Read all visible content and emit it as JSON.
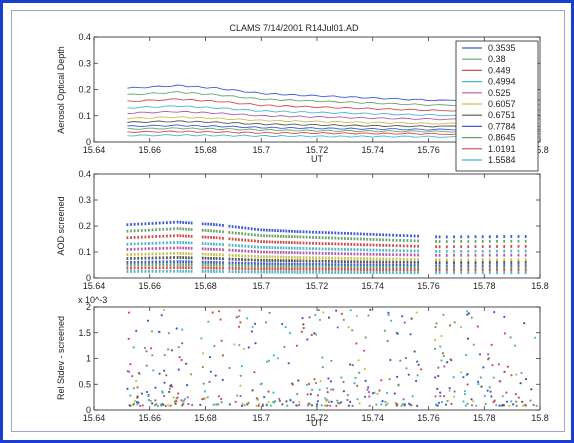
{
  "chart_data": [
    {
      "type": "line",
      "title": "CLAMS  7/14/2001 R14Jul01.AD",
      "xlabel": "UT",
      "ylabel": "Aerosol Optical Depth",
      "xlim": [
        15.64,
        15.8
      ],
      "ylim": [
        0,
        0.4
      ],
      "xticks": [
        "15.64",
        "15.66",
        "15.68",
        "15.7",
        "15.72",
        "15.74",
        "15.76",
        "15.78",
        "15.8"
      ],
      "yticks": [
        "0",
        "0.1",
        "0.2",
        "0.3",
        "0.4"
      ],
      "grid": false,
      "legend_position": "top-right",
      "legend": [
        "0.3535",
        "0.38",
        "0.449",
        "0.4994",
        "0.525",
        "0.6057",
        "0.6751",
        "0.7784",
        "0.8645",
        "1.0191",
        "1.5584"
      ],
      "series": [
        {
          "name": "0.3535",
          "color": "#3d5ad6",
          "values": [
            0.205,
            0.215,
            0.205,
            0.185,
            0.178,
            0.172,
            0.165,
            0.158,
            0.16
          ]
        },
        {
          "name": "0.38",
          "color": "#6aa36a",
          "values": [
            0.18,
            0.19,
            0.18,
            0.163,
            0.158,
            0.152,
            0.146,
            0.14,
            0.142
          ]
        },
        {
          "name": "0.449",
          "color": "#d24b4b",
          "values": [
            0.155,
            0.163,
            0.155,
            0.14,
            0.135,
            0.13,
            0.125,
            0.12,
            0.122
          ]
        },
        {
          "name": "0.4994",
          "color": "#49b8c8",
          "values": [
            0.13,
            0.137,
            0.13,
            0.118,
            0.114,
            0.11,
            0.106,
            0.102,
            0.104
          ]
        },
        {
          "name": "0.525",
          "color": "#b458b4",
          "values": [
            0.11,
            0.116,
            0.11,
            0.1,
            0.097,
            0.093,
            0.09,
            0.087,
            0.088
          ]
        },
        {
          "name": "0.6057",
          "color": "#c8c24a",
          "values": [
            0.09,
            0.095,
            0.09,
            0.082,
            0.079,
            0.076,
            0.073,
            0.07,
            0.071
          ]
        },
        {
          "name": "0.6751",
          "color": "#555555",
          "values": [
            0.075,
            0.079,
            0.075,
            0.068,
            0.066,
            0.063,
            0.061,
            0.059,
            0.06
          ]
        },
        {
          "name": "0.7784",
          "color": "#3d5ad6",
          "values": [
            0.06,
            0.063,
            0.06,
            0.055,
            0.053,
            0.051,
            0.049,
            0.047,
            0.048
          ]
        },
        {
          "name": "0.8645",
          "color": "#6aa36a",
          "values": [
            0.05,
            0.052,
            0.05,
            0.046,
            0.044,
            0.042,
            0.041,
            0.04,
            0.04
          ]
        },
        {
          "name": "1.0191",
          "color": "#d24b4b",
          "values": [
            0.038,
            0.04,
            0.038,
            0.035,
            0.034,
            0.033,
            0.032,
            0.031,
            0.031
          ]
        },
        {
          "name": "1.5584",
          "color": "#49b8c8",
          "values": [
            0.025,
            0.026,
            0.025,
            0.023,
            0.022,
            0.021,
            0.021,
            0.02,
            0.02
          ]
        }
      ],
      "x": [
        15.652,
        15.67,
        15.684,
        15.7,
        15.714,
        15.73,
        15.746,
        15.764,
        15.8
      ]
    },
    {
      "type": "scatter",
      "title": "",
      "xlabel": "UT",
      "ylabel": "AOD screened",
      "xlim": [
        15.64,
        15.8
      ],
      "ylim": [
        0,
        0.4
      ],
      "xticks": [
        "15.64",
        "15.66",
        "15.68",
        "15.7",
        "15.72",
        "15.74",
        "15.76",
        "15.78",
        "15.8"
      ],
      "yticks": [
        "0",
        "0.1",
        "0.2",
        "0.3",
        "0.4"
      ],
      "grid": false,
      "note": "Same spectral series as top panel, shown as screened points with data gaps"
    },
    {
      "type": "scatter",
      "title": "",
      "xlabel": "UT",
      "ylabel": "Rel Stdev - screened",
      "y_multiplier": "x 10^-3",
      "xlim": [
        15.64,
        15.8
      ],
      "ylim": [
        0,
        2
      ],
      "xticks": [
        "15.64",
        "15.66",
        "15.68",
        "15.7",
        "15.72",
        "15.74",
        "15.76",
        "15.78",
        "15.8"
      ],
      "yticks": [
        "0",
        "0.5",
        "1",
        "1.5",
        "2"
      ],
      "grid": false
    }
  ]
}
